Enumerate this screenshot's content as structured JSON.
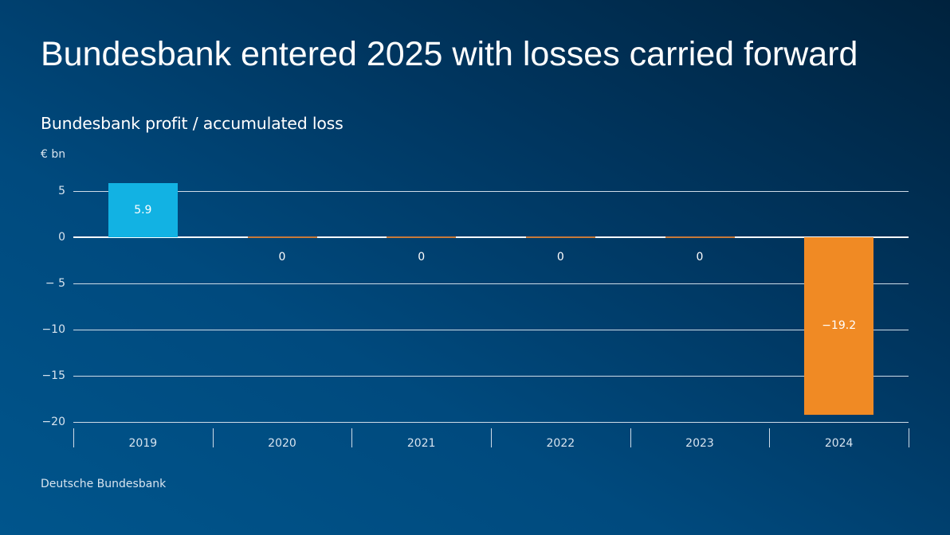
{
  "page": {
    "title": "Bundesbank entered 2025 with losses carried forward",
    "subtitle": "Bundesbank profit / accumulated loss",
    "unit": "€ bn",
    "source": "Deutsche Bundesbank"
  },
  "colors": {
    "positive_bar": "#12b2e3",
    "negative_bar": "#f08a24",
    "zero_bar": "#c87a3a",
    "grid": "#cfdce8"
  },
  "chart_data": {
    "type": "bar",
    "title": "Bundesbank profit / accumulated loss",
    "xlabel": "",
    "ylabel": "€ bn",
    "categories": [
      "2019",
      "2020",
      "2021",
      "2022",
      "2023",
      "2024"
    ],
    "values": [
      5.9,
      0,
      0,
      0,
      0,
      -19.2
    ],
    "value_labels": [
      "5.9",
      "0",
      "0",
      "0",
      "0",
      "−19.2"
    ],
    "ylim": [
      -20,
      5
    ],
    "yticks": [
      5,
      0,
      -5,
      -10,
      -15,
      -20
    ],
    "ytick_labels": [
      "5",
      "0",
      "−  5",
      "−10",
      "−15",
      "−20"
    ],
    "grid": true,
    "legend": null
  }
}
